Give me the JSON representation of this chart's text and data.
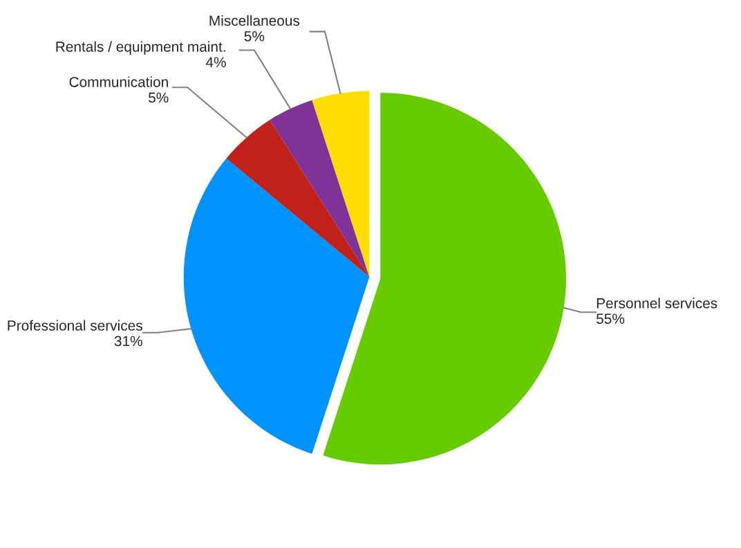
{
  "chart_data": {
    "type": "pie",
    "categories": [
      "Personnel services",
      "Professional services",
      "Communication",
      "Rentals / equipment maint.",
      "Miscellaneous"
    ],
    "values": [
      55,
      31,
      5,
      4,
      5
    ],
    "colors": [
      "#66cc00",
      "#0093ff",
      "#c0211a",
      "#7f3396",
      "#ffdd00"
    ],
    "value_labels": [
      "55%",
      "31%",
      "5%",
      "4%",
      "5%"
    ],
    "legend": false
  }
}
